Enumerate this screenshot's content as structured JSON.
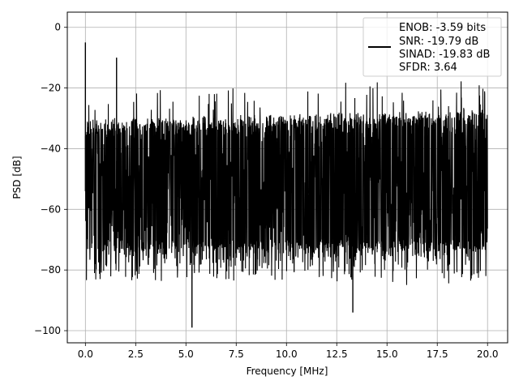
{
  "chart_data": {
    "type": "line",
    "title": "",
    "xlabel": "Frequency [MHz]",
    "ylabel": "PSD [dB]",
    "xlim": [
      -0.9,
      21.0
    ],
    "ylim": [
      -104,
      5
    ],
    "xticks": [
      0.0,
      2.5,
      5.0,
      7.5,
      10.0,
      12.5,
      15.0,
      17.5,
      20.0
    ],
    "xtick_labels": [
      "0.0",
      "2.5",
      "5.0",
      "7.5",
      "10.0",
      "12.5",
      "15.0",
      "17.5",
      "20.0"
    ],
    "yticks": [
      0,
      -20,
      -40,
      -60,
      -80,
      -100
    ],
    "ytick_labels": [
      "0",
      "−20",
      "−40",
      "−60",
      "−80",
      "−100"
    ],
    "grid": true,
    "legend_position": "top-right",
    "series": [
      {
        "name": "ENOB: -3.59 bits\nSNR: -19.79 dB\nSINAD: -19.83 dB\nSFDR: 3.64",
        "color": "#000000",
        "x_range": [
          0.0,
          20.0
        ],
        "floor_db": -54,
        "spikes": [
          {
            "x": 0.0,
            "y": -5
          },
          {
            "x": 1.55,
            "y": -10
          },
          {
            "x": 5.3,
            "y": -99
          },
          {
            "x": 13.3,
            "y": -94
          }
        ]
      }
    ],
    "legend_lines": [
      "ENOB: -3.59 bits",
      "SNR: -19.79 dB",
      "SINAD: -19.83 dB",
      "SFDR: 3.64"
    ]
  }
}
